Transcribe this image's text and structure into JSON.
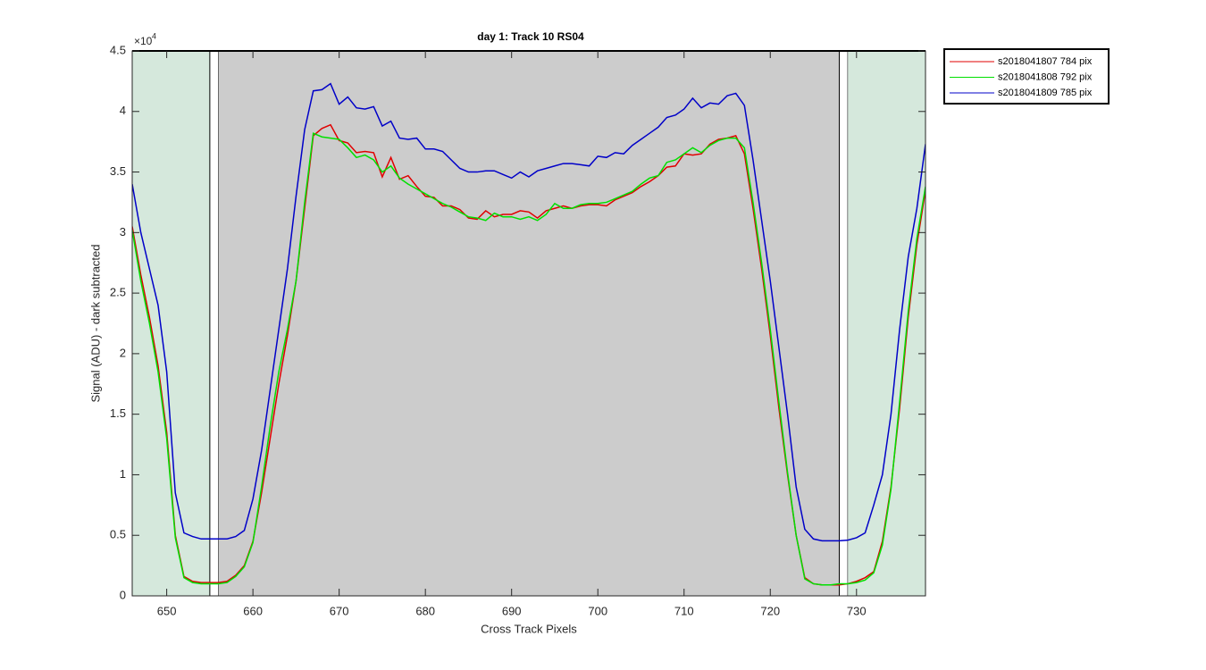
{
  "chart_data": {
    "type": "line",
    "title": "day 1: Track 10  RS04",
    "x_label": "Cross Track Pixels",
    "y_label": "Signal (ADU) - dark subtracted",
    "y_multiplier": "×10",
    "y_exponent": "4",
    "xlim": [
      646,
      738
    ],
    "ylim": [
      0,
      45000
    ],
    "xticks": [
      650,
      660,
      670,
      680,
      690,
      700,
      710,
      720,
      730
    ],
    "yticks": [
      0,
      {
        "value": 5000,
        "label": "0.5"
      },
      {
        "value": 10000,
        "label": "1"
      },
      {
        "value": 15000,
        "label": "1.5"
      },
      {
        "value": 20000,
        "label": "2"
      },
      {
        "value": 25000,
        "label": "2.5"
      },
      {
        "value": 30000,
        "label": "3"
      },
      {
        "value": 35000,
        "label": "3.5"
      },
      {
        "value": 40000,
        "label": "4"
      },
      {
        "value": 45000,
        "label": "4.5"
      }
    ],
    "legend": "outside-top-right",
    "regions": [
      {
        "from": 646,
        "to": 655,
        "color": "#d5e8dc"
      },
      {
        "from": 655,
        "to": 656,
        "color": "#ffffff"
      },
      {
        "from": 656,
        "to": 728,
        "color": "#cccccc"
      },
      {
        "from": 728,
        "to": 729,
        "color": "#ffffff"
      },
      {
        "from": 729,
        "to": 738,
        "color": "#d5e8dc"
      }
    ],
    "x": [
      646,
      647,
      648,
      649,
      650,
      651,
      652,
      653,
      654,
      655,
      656,
      657,
      658,
      659,
      660,
      661,
      662,
      663,
      664,
      665,
      666,
      667,
      668,
      669,
      670,
      671,
      672,
      673,
      674,
      675,
      676,
      677,
      678,
      679,
      680,
      681,
      682,
      683,
      684,
      685,
      686,
      687,
      688,
      689,
      690,
      691,
      692,
      693,
      694,
      695,
      696,
      697,
      698,
      699,
      700,
      701,
      702,
      703,
      704,
      705,
      706,
      707,
      708,
      709,
      710,
      711,
      712,
      713,
      714,
      715,
      716,
      717,
      718,
      719,
      720,
      721,
      722,
      723,
      724,
      725,
      726,
      727,
      728,
      729,
      730,
      731,
      732,
      733,
      734,
      735,
      736,
      737,
      738
    ],
    "series": [
      {
        "name": "s2018041807 784 pix",
        "color": "#e00000",
        "values": [
          30500,
          26500,
          23000,
          19000,
          13500,
          5000,
          1600,
          1200,
          1100,
          1100,
          1100,
          1200,
          1700,
          2500,
          4500,
          8500,
          13000,
          17500,
          21500,
          26000,
          32000,
          38000,
          38600,
          38900,
          37600,
          37400,
          36600,
          36700,
          36600,
          34600,
          36200,
          34400,
          34700,
          33800,
          33000,
          32900,
          32200,
          32200,
          31900,
          31200,
          31100,
          31800,
          31300,
          31500,
          31500,
          31800,
          31700,
          31200,
          31800,
          32000,
          32200,
          32000,
          32200,
          32300,
          32300,
          32200,
          32700,
          33000,
          33300,
          33800,
          34200,
          34700,
          35400,
          35500,
          36500,
          36400,
          36500,
          37300,
          37700,
          37800,
          38000,
          36500,
          32000,
          27000,
          21500,
          15500,
          10000,
          5000,
          1500,
          1000,
          900,
          900,
          900,
          1000,
          1200,
          1500,
          2000,
          4500,
          9000,
          15500,
          23000,
          29000,
          33500
        ]
      },
      {
        "name": "s2018041808 792 pix",
        "color": "#00e000",
        "values": [
          30200,
          26000,
          22500,
          18500,
          13000,
          4800,
          1500,
          1100,
          1000,
          1000,
          1000,
          1100,
          1600,
          2400,
          4400,
          9000,
          14000,
          18500,
          22000,
          26000,
          32500,
          38200,
          37900,
          37800,
          37700,
          37000,
          36200,
          36400,
          36000,
          35000,
          35500,
          34500,
          34000,
          33600,
          33200,
          32800,
          32400,
          32100,
          31700,
          31300,
          31200,
          31000,
          31600,
          31300,
          31300,
          31100,
          31300,
          31000,
          31500,
          32400,
          32000,
          32000,
          32300,
          32400,
          32400,
          32500,
          32800,
          33100,
          33400,
          34000,
          34500,
          34700,
          35800,
          36000,
          36500,
          37000,
          36600,
          37200,
          37600,
          37800,
          37800,
          37000,
          32500,
          27500,
          22000,
          16000,
          10200,
          5000,
          1400,
          1000,
          900,
          900,
          1000,
          1000,
          1100,
          1300,
          1900,
          4200,
          8800,
          16000,
          23500,
          29500,
          33800
        ]
      },
      {
        "name": "s2018041809 785 pix",
        "color": "#0000c8",
        "values": [
          34000,
          30000,
          27000,
          24000,
          18500,
          8500,
          5200,
          4900,
          4700,
          4700,
          4700,
          4700,
          4900,
          5400,
          8000,
          12000,
          17000,
          22000,
          27000,
          33000,
          38500,
          41700,
          41800,
          42300,
          40600,
          41200,
          40300,
          40200,
          40400,
          38800,
          39200,
          37800,
          37700,
          37800,
          36900,
          36900,
          36700,
          36000,
          35300,
          35000,
          35000,
          35100,
          35100,
          34800,
          34500,
          35000,
          34600,
          35100,
          35300,
          35500,
          35700,
          35700,
          35600,
          35500,
          36300,
          36200,
          36600,
          36500,
          37200,
          37700,
          38200,
          38700,
          39500,
          39700,
          40200,
          41100,
          40300,
          40700,
          40600,
          41300,
          41500,
          40500,
          36000,
          31000,
          26000,
          20500,
          15000,
          9000,
          5500,
          4700,
          4550,
          4550,
          4550,
          4600,
          4800,
          5200,
          7500,
          10000,
          15000,
          22000,
          28000,
          32000,
          37300
        ]
      }
    ]
  }
}
